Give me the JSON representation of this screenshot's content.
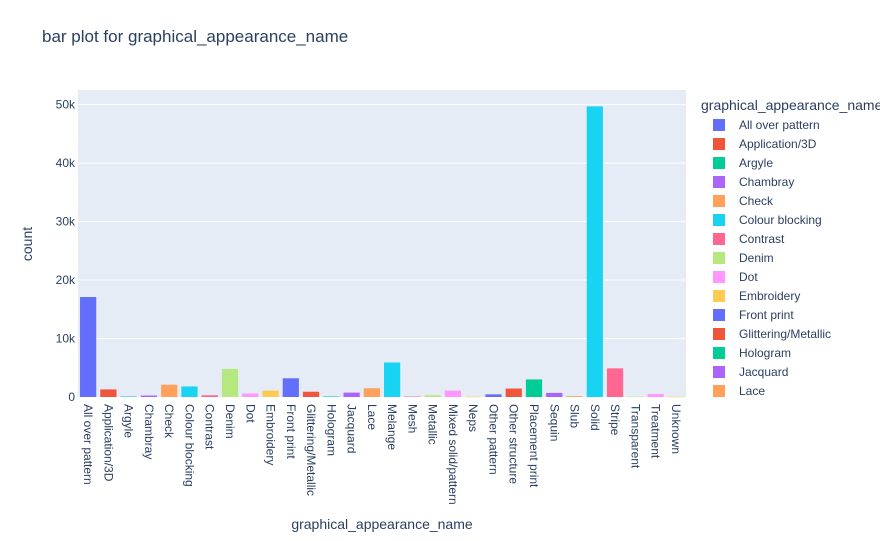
{
  "chart_data": {
    "type": "bar",
    "title": "bar plot for graphical_appearance_name",
    "xlabel": "graphical_appearance_name",
    "ylabel": "count",
    "ylim": [
      0,
      52500
    ],
    "yticks": [
      0,
      10000,
      20000,
      30000,
      40000,
      50000
    ],
    "ytick_labels": [
      "0",
      "10k",
      "20k",
      "30k",
      "40k",
      "50k"
    ],
    "grid": true,
    "legend": {
      "title": "graphical_appearance_name",
      "placement": "right"
    },
    "categories": [
      "All over pattern",
      "Application/3D",
      "Argyle",
      "Chambray",
      "Check",
      "Colour blocking",
      "Contrast",
      "Denim",
      "Dot",
      "Embroidery",
      "Front print",
      "Glittering/Metallic",
      "Hologram",
      "Jacquard",
      "Lace",
      "Melange",
      "Mesh",
      "Metallic",
      "Mixed solid/pattern",
      "Neps",
      "Other pattern",
      "Other structure",
      "Placement print",
      "Sequin",
      "Slub",
      "Solid",
      "Stripe",
      "Transparent",
      "Treatment",
      "Unknown"
    ],
    "values": [
      17100,
      1300,
      80,
      250,
      2100,
      1800,
      300,
      4800,
      600,
      1100,
      3200,
      900,
      90,
      750,
      1500,
      5900,
      80,
      300,
      1100,
      50,
      450,
      1450,
      3000,
      700,
      150,
      49700,
      4900,
      50,
      500,
      40
    ],
    "colors": [
      "#636efa",
      "#EF553B",
      "#00cc96",
      "#ab63fa",
      "#FFA15A",
      "#19d3f3",
      "#FF6692",
      "#B6E880",
      "#FF97FF",
      "#FECB52"
    ],
    "legend_visible_count": 15
  }
}
